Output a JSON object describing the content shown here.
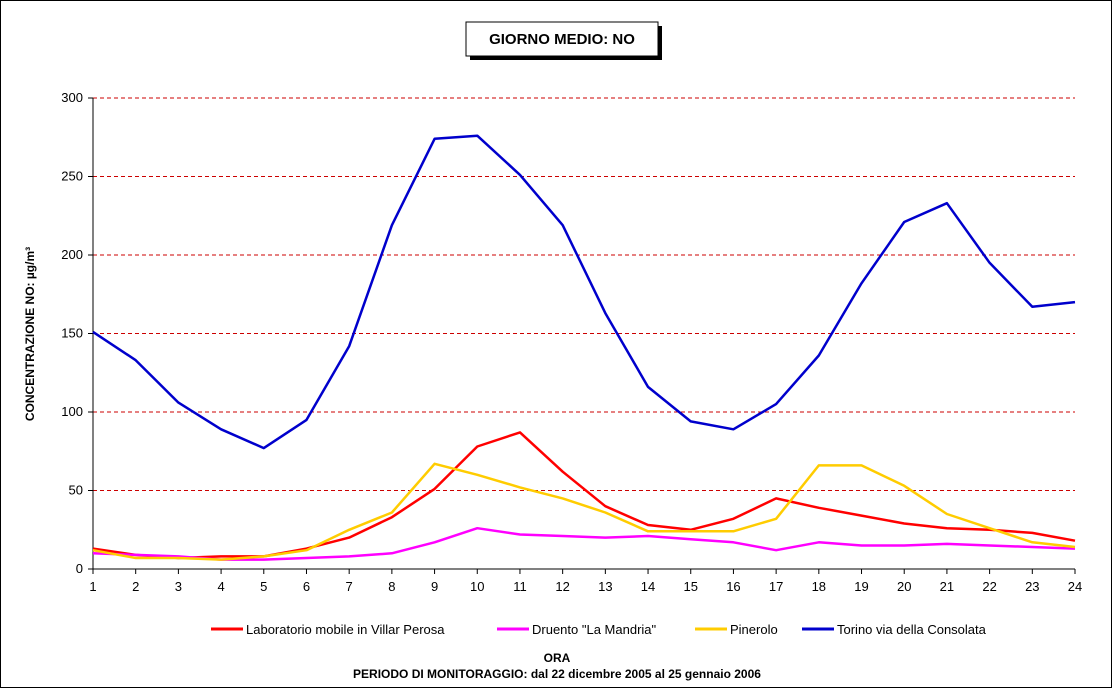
{
  "chart_data": {
    "type": "line",
    "title": "GIORNO MEDIO: NO",
    "xlabel": "ORA",
    "ylabel": "CONCENTRAZIONE NO: µg/m³",
    "subtitle": "PERIODO DI MONITORAGGIO: dal 22 dicembre 2005 al 25 gennaio 2006",
    "x": [
      1,
      2,
      3,
      4,
      5,
      6,
      7,
      8,
      9,
      10,
      11,
      12,
      13,
      14,
      15,
      16,
      17,
      18,
      19,
      20,
      21,
      22,
      23,
      24
    ],
    "xlim": [
      1,
      24
    ],
    "ylim": [
      0,
      300
    ],
    "yticks": [
      0,
      50,
      100,
      150,
      200,
      250,
      300
    ],
    "grid": "horizontal dashed",
    "legend_position": "bottom",
    "series": [
      {
        "name": "Laboratorio mobile in Villar Perosa",
        "color": "#ff0000",
        "values": [
          13,
          9,
          7,
          8,
          8,
          13,
          20,
          33,
          51,
          78,
          87,
          62,
          40,
          28,
          25,
          32,
          45,
          39,
          34,
          29,
          26,
          25,
          23,
          18
        ]
      },
      {
        "name": "Druento \"La Mandria\"",
        "color": "#ff00ff",
        "values": [
          10,
          9,
          8,
          6,
          6,
          7,
          8,
          10,
          17,
          26,
          22,
          21,
          20,
          21,
          19,
          17,
          12,
          17,
          15,
          15,
          16,
          15,
          14,
          13
        ]
      },
      {
        "name": "Pinerolo",
        "color": "#ffcc00",
        "values": [
          12,
          7,
          7,
          6,
          8,
          12,
          25,
          36,
          67,
          60,
          52,
          45,
          36,
          24,
          24,
          24,
          32,
          66,
          66,
          53,
          35,
          26,
          17,
          14
        ]
      },
      {
        "name": "Torino via della Consolata",
        "color": "#0000cc",
        "values": [
          151,
          133,
          106,
          89,
          77,
          95,
          142,
          219,
          274,
          276,
          251,
          219,
          163,
          116,
          94,
          89,
          105,
          136,
          182,
          221,
          233,
          195,
          167,
          170
        ]
      }
    ]
  }
}
